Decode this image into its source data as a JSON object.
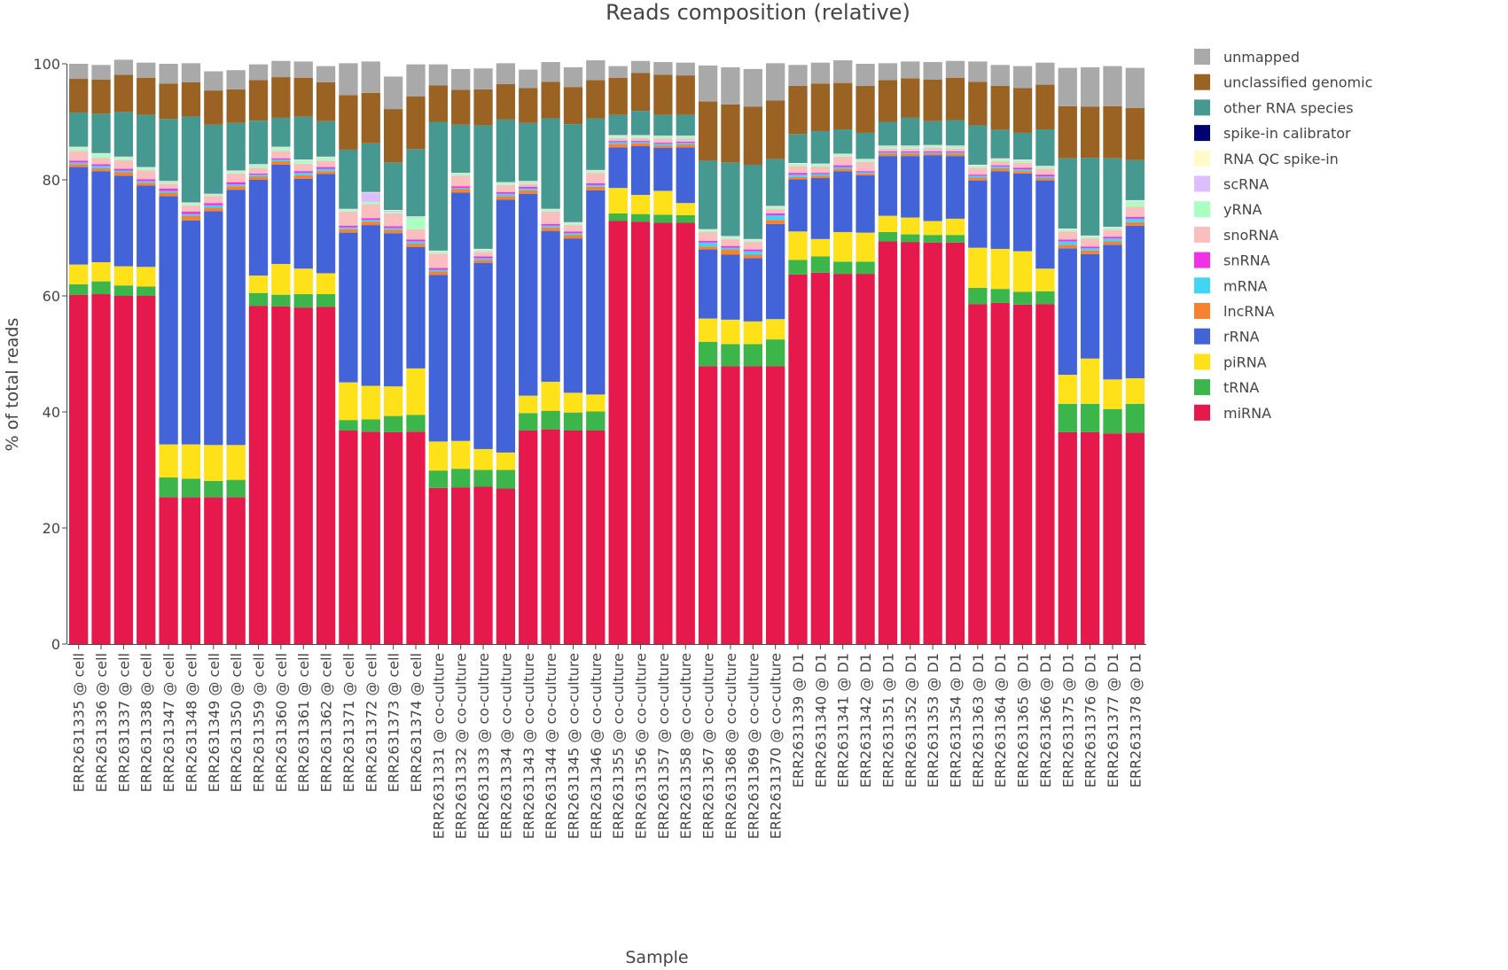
{
  "chart_data": {
    "type": "bar",
    "stacked": true,
    "title": "Reads composition (relative)",
    "xlabel": "Sample",
    "ylabel": "% of total reads",
    "ylim": [
      0,
      100
    ],
    "yticks": [
      0,
      20,
      40,
      60,
      80,
      100
    ],
    "grid": false,
    "legend_position": "right",
    "categories": [
      "ERR2631335 @ cell",
      "ERR2631336 @ cell",
      "ERR2631337 @ cell",
      "ERR2631338 @ cell",
      "ERR2631347 @ cell",
      "ERR2631348 @ cell",
      "ERR2631349 @ cell",
      "ERR2631350 @ cell",
      "ERR2631359 @ cell",
      "ERR2631360 @ cell",
      "ERR2631361 @ cell",
      "ERR2631362 @ cell",
      "ERR2631371 @ cell",
      "ERR2631372 @ cell",
      "ERR2631373 @ cell",
      "ERR2631374 @ cell",
      "ERR2631331 @ co-culture",
      "ERR2631332 @ co-culture",
      "ERR2631333 @ co-culture",
      "ERR2631334 @ co-culture",
      "ERR2631343 @ co-culture",
      "ERR2631344 @ co-culture",
      "ERR2631345 @ co-culture",
      "ERR2631346 @ co-culture",
      "ERR2631355 @ co-culture",
      "ERR2631356 @ co-culture",
      "ERR2631357 @ co-culture",
      "ERR2631358 @ co-culture",
      "ERR2631367 @ co-culture",
      "ERR2631368 @ co-culture",
      "ERR2631369 @ co-culture",
      "ERR2631370 @ co-culture",
      "ERR2631339 @ D1",
      "ERR2631340 @ D1",
      "ERR2631341 @ D1",
      "ERR2631342 @ D1",
      "ERR2631351 @ D1",
      "ERR2631352 @ D1",
      "ERR2631353 @ D1",
      "ERR2631354 @ D1",
      "ERR2631363 @ D1",
      "ERR2631364 @ D1",
      "ERR2631365 @ D1",
      "ERR2631366 @ D1",
      "ERR2631375 @ D1",
      "ERR2631376 @ D1",
      "ERR2631377 @ D1",
      "ERR2631378 @ D1"
    ],
    "series": [
      {
        "name": "miRNA",
        "color": "#e5194b",
        "values": [
          60.2,
          60.3,
          60.0,
          60.0,
          25.3,
          25.3,
          25.3,
          25.3,
          58.3,
          58.2,
          58.0,
          58.1,
          36.8,
          36.6,
          36.5,
          36.6,
          26.9,
          27.0,
          27.1,
          26.8,
          36.8,
          37.0,
          36.8,
          36.8,
          72.9,
          72.8,
          72.6,
          72.6,
          47.9,
          47.9,
          47.9,
          47.9,
          63.7,
          64.0,
          63.8,
          63.8,
          69.4,
          69.3,
          69.2,
          69.2,
          58.6,
          58.8,
          58.5,
          58.6,
          36.5,
          36.5,
          36.3,
          36.4
        ]
      },
      {
        "name": "tRNA",
        "color": "#3cb54b",
        "values": [
          1.8,
          2.2,
          1.8,
          1.6,
          3.4,
          3.2,
          2.8,
          3.0,
          2.2,
          2.0,
          2.3,
          2.2,
          1.8,
          2.1,
          2.8,
          2.9,
          3.0,
          3.2,
          2.9,
          3.2,
          3.0,
          3.2,
          3.1,
          3.3,
          1.3,
          1.3,
          1.4,
          1.3,
          4.2,
          3.8,
          3.8,
          4.6,
          2.5,
          2.8,
          2.1,
          2.1,
          1.6,
          1.3,
          1.3,
          1.3,
          2.8,
          2.4,
          2.2,
          2.2,
          4.9,
          4.9,
          4.2,
          5.0
        ]
      },
      {
        "name": "piRNA",
        "color": "#ffe119",
        "values": [
          3.4,
          3.3,
          3.3,
          3.4,
          5.7,
          5.9,
          6.2,
          6.0,
          3.0,
          5.3,
          4.4,
          3.6,
          6.5,
          5.8,
          5.1,
          8.0,
          5.0,
          4.8,
          3.6,
          3.0,
          3.0,
          5.0,
          3.4,
          2.9,
          4.4,
          3.3,
          4.1,
          2.1,
          4.0,
          4.2,
          3.9,
          3.5,
          4.9,
          3.0,
          5.1,
          5.0,
          2.8,
          2.9,
          2.4,
          2.8,
          6.9,
          6.9,
          7.0,
          3.9,
          5.0,
          7.8,
          5.1,
          4.4
        ]
      },
      {
        "name": "rRNA",
        "color": "#4363d8",
        "values": [
          16.8,
          15.7,
          15.6,
          14.0,
          42.8,
          38.6,
          40.3,
          44.0,
          16.5,
          17.1,
          15.5,
          17.1,
          25.8,
          27.7,
          26.4,
          20.9,
          28.7,
          42.8,
          32.1,
          43.6,
          34.8,
          26.0,
          26.6,
          35.2,
          7.0,
          8.4,
          7.4,
          9.6,
          11.9,
          11.2,
          10.9,
          16.4,
          9.0,
          10.5,
          10.5,
          9.9,
          10.3,
          10.6,
          11.3,
          10.8,
          11.6,
          13.4,
          13.4,
          15.2,
          21.8,
          18.0,
          23.2,
          26.3
        ]
      },
      {
        "name": "lncRNA",
        "color": "#f58231",
        "values": [
          0.5,
          0.5,
          0.6,
          0.5,
          0.6,
          0.8,
          0.6,
          0.6,
          0.6,
          0.6,
          0.6,
          0.5,
          0.6,
          0.6,
          0.6,
          0.6,
          0.6,
          0.6,
          0.5,
          0.6,
          0.6,
          0.6,
          0.6,
          0.6,
          0.6,
          0.5,
          0.4,
          0.5,
          0.5,
          0.9,
          0.6,
          0.7,
          0.4,
          0.4,
          0.4,
          0.3,
          0.4,
          0.4,
          0.3,
          0.4,
          0.5,
          0.5,
          0.4,
          0.4,
          0.6,
          0.6,
          0.6,
          0.6
        ]
      },
      {
        "name": "mRNA",
        "color": "#42d4f4",
        "values": [
          0.3,
          0.4,
          0.3,
          0.3,
          0.3,
          0.3,
          0.4,
          0.3,
          0.3,
          0.3,
          0.4,
          0.4,
          0.3,
          0.3,
          0.3,
          0.4,
          0.3,
          0.2,
          0.3,
          0.4,
          0.3,
          0.3,
          0.3,
          0.3,
          0.3,
          0.2,
          0.3,
          0.3,
          0.7,
          0.3,
          0.6,
          0.8,
          0.4,
          0.3,
          0.3,
          0.2,
          0.2,
          0.2,
          0.2,
          0.2,
          0.3,
          0.3,
          0.3,
          0.3,
          0.6,
          0.4,
          0.5,
          0.6
        ]
      },
      {
        "name": "snRNA",
        "color": "#f032e6",
        "values": [
          0.3,
          0.3,
          0.3,
          0.3,
          0.4,
          0.4,
          0.4,
          0.4,
          0.2,
          0.2,
          0.3,
          0.3,
          0.3,
          0.3,
          0.3,
          0.3,
          0.3,
          0.3,
          0.3,
          0.3,
          0.3,
          0.3,
          0.3,
          0.3,
          0.2,
          0.2,
          0.2,
          0.2,
          0.3,
          0.3,
          0.3,
          0.3,
          0.3,
          0.2,
          0.3,
          0.2,
          0.2,
          0.2,
          0.2,
          0.2,
          0.2,
          0.2,
          0.3,
          0.3,
          0.3,
          0.3,
          0.3,
          0.3
        ]
      },
      {
        "name": "snoRNA",
        "color": "#fabebe",
        "values": [
          1.7,
          1.1,
          1.5,
          1.5,
          0.8,
          1.1,
          1.2,
          1.5,
          1.0,
          1.3,
          1.3,
          1.1,
          2.4,
          2.4,
          2.2,
          1.8,
          2.5,
          1.8,
          0.8,
          1.2,
          0.5,
          2.1,
          1.1,
          1.8,
          0.5,
          0.5,
          0.7,
          0.5,
          1.5,
          1.2,
          1.3,
          0.8,
          1.2,
          1.1,
          1.5,
          1.6,
          0.5,
          0.5,
          0.6,
          0.5,
          1.2,
          0.7,
          0.9,
          1.0,
          1.4,
          1.4,
          1.2,
          1.8
        ]
      },
      {
        "name": "yRNA",
        "color": "#aaffc3",
        "values": [
          0.5,
          0.6,
          0.4,
          0.4,
          0.3,
          0.3,
          0.2,
          0.3,
          0.4,
          0.5,
          0.5,
          0.5,
          0.3,
          0.4,
          0.3,
          2.0,
          0.3,
          0.3,
          0.3,
          0.3,
          0.3,
          0.3,
          0.3,
          0.3,
          0.3,
          0.3,
          0.3,
          0.3,
          0.3,
          0.3,
          0.3,
          0.3,
          0.3,
          0.3,
          0.3,
          0.3,
          0.3,
          0.3,
          0.3,
          0.3,
          0.3,
          0.3,
          0.3,
          0.3,
          0.3,
          0.3,
          0.3,
          0.9
        ]
      },
      {
        "name": "scRNA",
        "color": "#dcbeff",
        "values": [
          0.1,
          0.1,
          0.1,
          0.1,
          0.1,
          0.1,
          0.1,
          0.1,
          0.1,
          0.1,
          0.1,
          0.1,
          0.1,
          1.6,
          0.2,
          0.1,
          0.1,
          0.1,
          0.1,
          0.1,
          0.1,
          0.1,
          0.1,
          0.1,
          0.1,
          0.1,
          0.1,
          0.1,
          0.1,
          0.1,
          0.1,
          0.1,
          0.1,
          0.1,
          0.1,
          0.1,
          0.1,
          0.1,
          0.1,
          0.1,
          0.1,
          0.1,
          0.1,
          0.1,
          0.1,
          0.1,
          0.1,
          0.1
        ]
      },
      {
        "name": "RNA QC spike-in",
        "color": "#fffac8",
        "values": [
          0.1,
          0.1,
          0.1,
          0.1,
          0.1,
          0.1,
          0.1,
          0.1,
          0.1,
          0.1,
          0.1,
          0.1,
          0.1,
          0.1,
          0.1,
          0.1,
          0.1,
          0.1,
          0.1,
          0.1,
          0.1,
          0.1,
          0.1,
          0.1,
          0.1,
          0.1,
          0.1,
          0.1,
          0.1,
          0.1,
          0.1,
          0.1,
          0.1,
          0.1,
          0.1,
          0.1,
          0.1,
          0.1,
          0.1,
          0.1,
          0.1,
          0.1,
          0.1,
          0.1,
          0.1,
          0.1,
          0.1,
          0.1
        ]
      },
      {
        "name": "spike-in calibrator",
        "color": "#000075",
        "values": [
          0,
          0,
          0,
          0,
          0,
          0,
          0,
          0,
          0,
          0,
          0,
          0,
          0,
          0,
          0,
          0,
          0,
          0,
          0,
          0,
          0,
          0,
          0,
          0,
          0,
          0,
          0,
          0,
          0,
          0,
          0,
          0,
          0,
          0,
          0,
          0,
          0,
          0,
          0,
          0,
          0,
          0,
          0,
          0,
          0,
          0,
          0,
          0
        ]
      },
      {
        "name": "other RNA species",
        "color": "#469990",
        "values": [
          5.9,
          6.8,
          7.7,
          9.0,
          10.7,
          14.8,
          11.9,
          8.2,
          7.5,
          5.0,
          7.4,
          6.1,
          10.2,
          8.4,
          8.2,
          11.6,
          22.2,
          8.3,
          21.3,
          10.8,
          10.0,
          15.6,
          16.9,
          8.9,
          3.5,
          4.2,
          3.6,
          3.6,
          11.8,
          12.7,
          12.8,
          8.1,
          5.0,
          5.6,
          4.2,
          4.5,
          4.1,
          4.8,
          4.1,
          4.4,
          6.8,
          4.9,
          4.6,
          6.3,
          12.1,
          13.4,
          11.8,
          6.9
        ]
      },
      {
        "name": "unclassified genomic",
        "color": "#9a6324",
        "values": [
          5.8,
          5.9,
          6.4,
          6.4,
          6.1,
          5.9,
          5.9,
          5.8,
          7.0,
          7.0,
          6.7,
          6.7,
          9.4,
          8.7,
          9.2,
          9.1,
          6.3,
          6.0,
          6.2,
          6.1,
          6.0,
          6.3,
          6.4,
          6.6,
          6.4,
          6.5,
          6.9,
          6.8,
          10.2,
          10.0,
          10.0,
          10.1,
          8.3,
          8.2,
          8.0,
          8.1,
          7.2,
          6.8,
          7.2,
          7.3,
          7.5,
          7.6,
          7.7,
          7.7,
          9.0,
          8.8,
          9.0,
          9.0
        ]
      },
      {
        "name": "unmapped",
        "color": "#a9a9a9",
        "values": [
          2.6,
          2.5,
          2.6,
          2.6,
          3.4,
          3.3,
          3.3,
          3.3,
          2.7,
          2.8,
          2.8,
          2.8,
          5.5,
          5.4,
          5.6,
          5.5,
          3.6,
          3.6,
          3.6,
          3.6,
          3.2,
          3.4,
          3.4,
          3.4,
          2.0,
          2.1,
          2.2,
          2.2,
          6.2,
          6.4,
          6.5,
          6.4,
          3.6,
          3.6,
          3.9,
          3.8,
          2.9,
          2.9,
          3.0,
          2.9,
          3.5,
          3.6,
          3.8,
          3.8,
          6.6,
          6.8,
          6.9,
          6.9
        ]
      }
    ],
    "legend": [
      {
        "label": "unmapped",
        "color": "#a9a9a9"
      },
      {
        "label": "unclassified genomic",
        "color": "#9a6324"
      },
      {
        "label": "other RNA species",
        "color": "#469990"
      },
      {
        "label": "spike-in calibrator",
        "color": "#000075"
      },
      {
        "label": "RNA QC spike-in",
        "color": "#fffac8"
      },
      {
        "label": "scRNA",
        "color": "#dcbeff"
      },
      {
        "label": "yRNA",
        "color": "#aaffc3"
      },
      {
        "label": "snoRNA",
        "color": "#fabebe"
      },
      {
        "label": "snRNA",
        "color": "#f032e6"
      },
      {
        "label": "mRNA",
        "color": "#42d4f4"
      },
      {
        "label": "lncRNA",
        "color": "#f58231"
      },
      {
        "label": "rRNA",
        "color": "#4363d8"
      },
      {
        "label": "piRNA",
        "color": "#ffe119"
      },
      {
        "label": "tRNA",
        "color": "#3cb54b"
      },
      {
        "label": "miRNA",
        "color": "#e5194b"
      }
    ]
  }
}
